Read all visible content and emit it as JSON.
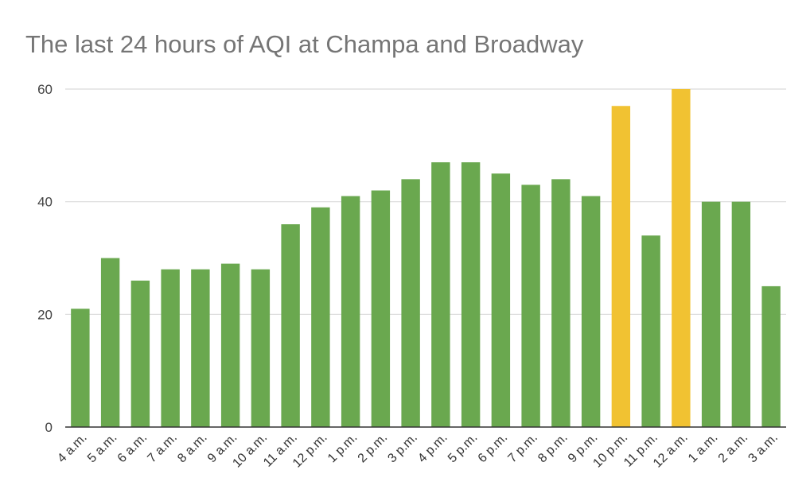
{
  "chart_data": {
    "type": "bar",
    "title": "The last 24 hours of AQI at Champa and Broadway",
    "xlabel": "",
    "ylabel": "",
    "ylim": [
      0,
      60
    ],
    "yticks": [
      0,
      20,
      40,
      60
    ],
    "grid": true,
    "categories": [
      "4 a.m.",
      "5 a.m.",
      "6 a.m.",
      "7 a.m.",
      "8 a.m.",
      "9 a.m.",
      "10 a.m.",
      "11 a.m.",
      "12 p.m.",
      "1 p.m.",
      "2 p.m.",
      "3 p.m.",
      "4 p.m.",
      "5 p.m.",
      "6 p.m.",
      "7 p.m.",
      "8 p.m.",
      "9 p.m.",
      "10 p.m.",
      "11 p.m.",
      "12 a.m.",
      "1 a.m.",
      "2 a.m.",
      "3 a.m."
    ],
    "values": [
      21,
      30,
      26,
      28,
      28,
      29,
      28,
      36,
      39,
      41,
      42,
      44,
      47,
      47,
      45,
      43,
      44,
      41,
      57,
      34,
      60,
      40,
      40,
      25
    ],
    "bar_colors": [
      "#6aa84f",
      "#6aa84f",
      "#6aa84f",
      "#6aa84f",
      "#6aa84f",
      "#6aa84f",
      "#6aa84f",
      "#6aa84f",
      "#6aa84f",
      "#6aa84f",
      "#6aa84f",
      "#6aa84f",
      "#6aa84f",
      "#6aa84f",
      "#6aa84f",
      "#6aa84f",
      "#6aa84f",
      "#6aa84f",
      "#f1c232",
      "#6aa84f",
      "#f1c232",
      "#6aa84f",
      "#6aa84f",
      "#6aa84f"
    ],
    "colors": {
      "good": "#6aa84f",
      "moderate": "#f1c232",
      "gridline": "#d9d9d9",
      "axis": "#333333"
    }
  }
}
